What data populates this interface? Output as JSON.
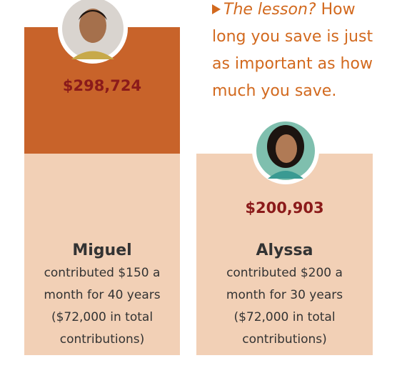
{
  "callout": {
    "lead": "The lesson?",
    "lines": [
      "How",
      "long you save is just",
      "as important as how",
      "much you save."
    ]
  },
  "people": [
    {
      "amount": "$298,724",
      "name": "Miguel",
      "lines": [
        "contributed $150 a",
        "month for 40 years",
        "($72,000 in total",
        "contributions)"
      ]
    },
    {
      "amount": "$200,903",
      "name": "Alyssa",
      "lines": [
        "contributed $200 a",
        "month for 30 years",
        "($72,000 in total",
        "contributions)"
      ]
    }
  ]
}
